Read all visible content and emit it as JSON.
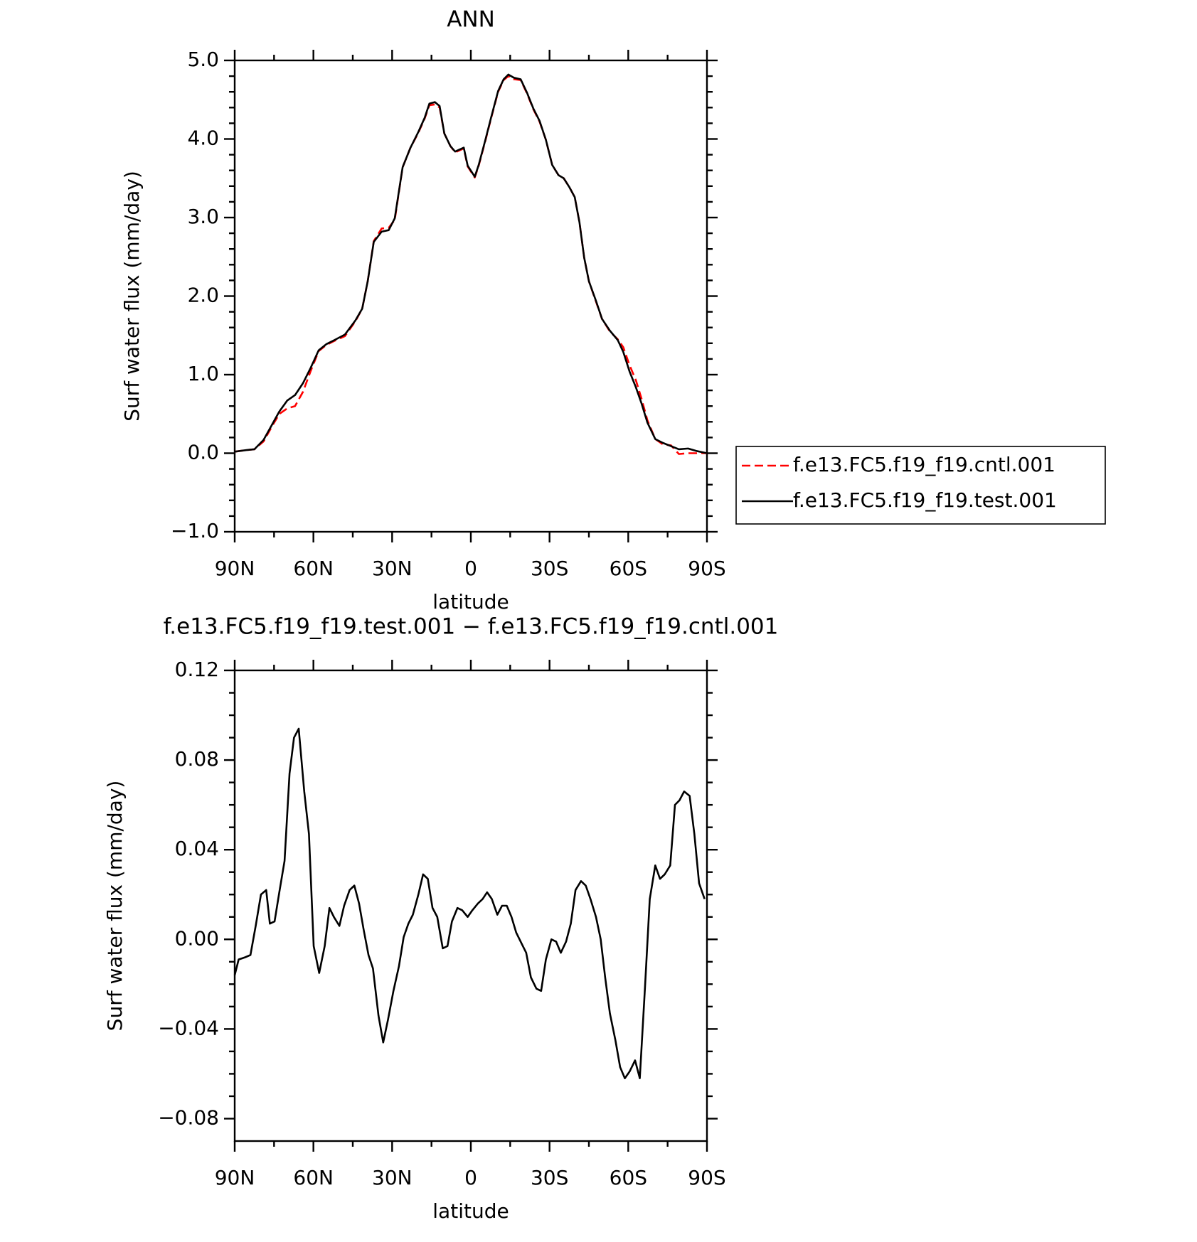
{
  "chart_data": [
    {
      "type": "line",
      "title": "ANN",
      "x_label": "latitude",
      "y_label": "Surf water flux (mm/day)",
      "xlim": [
        90,
        -90
      ],
      "xticks": [
        {
          "value": 90,
          "label": "90N"
        },
        {
          "value": 60,
          "label": "60N"
        },
        {
          "value": 30,
          "label": "30N"
        },
        0,
        {
          "value": -30,
          "label": "30S"
        },
        {
          "value": -60,
          "label": "60S"
        },
        {
          "value": -90,
          "label": "90S"
        }
      ],
      "ylim": [
        -1,
        5
      ],
      "yticks": [
        {
          "value": -1,
          "label": "−1.0"
        },
        {
          "value": 0,
          "label": "0.0"
        },
        {
          "value": 1,
          "label": "1.0"
        },
        {
          "value": 2,
          "label": "2.0"
        },
        {
          "value": 3,
          "label": "3.0"
        },
        {
          "value": 4,
          "label": "4.0"
        },
        {
          "value": 5,
          "label": "5.0"
        }
      ],
      "x": [
        90,
        85.5,
        82.5,
        79,
        76,
        73,
        70,
        67,
        64,
        61,
        58,
        55,
        52,
        48,
        44,
        41.4,
        39.3,
        37,
        34,
        31.3,
        29,
        26,
        23,
        20,
        17.6,
        15.8,
        13.7,
        11.9,
        10.1,
        7.8,
        6,
        2.7,
        1.2,
        -1.5,
        -3,
        -5.4,
        -7.7,
        -10.4,
        -12.5,
        -14.3,
        -16.4,
        -19,
        -21.4,
        -23.8,
        -26.2,
        -28.6,
        -31,
        -33.4,
        -35.4,
        -37.5,
        -39.6,
        -41.4,
        -43.2,
        -45,
        -47.7,
        -50,
        -53,
        -56,
        -58.1,
        -60.5,
        -62.9,
        -65,
        -67.3,
        -70.3,
        -73.3,
        -76.3,
        -79.3,
        -82.8,
        -85.8,
        -90
      ],
      "series": [
        {
          "name": "f.e13.FC5.f19_f19.cntl.001",
          "color": "#ff0000",
          "line_style": "dashed",
          "values": [
            0.02,
            0.04,
            0.05,
            0.15,
            0.33,
            0.5,
            0.57,
            0.6,
            0.78,
            1.05,
            1.3,
            1.38,
            1.43,
            1.49,
            1.68,
            1.84,
            2.19,
            2.7,
            2.86,
            2.87,
            2.97,
            3.64,
            3.89,
            4.08,
            4.26,
            4.43,
            4.44,
            4.4,
            4.07,
            3.91,
            3.83,
            3.88,
            3.65,
            3.51,
            3.66,
            3.96,
            4.26,
            4.6,
            4.75,
            4.8,
            4.76,
            4.75,
            4.58,
            4.38,
            4.22,
            3.99,
            3.67,
            3.54,
            3.5,
            3.39,
            3.26,
            2.94,
            2.49,
            2.19,
            1.93,
            1.71,
            1.55,
            1.45,
            1.35,
            1.12,
            0.93,
            0.7,
            0.42,
            0.18,
            0.11,
            0.1,
            -0.01,
            0.0,
            0.0,
            0.0
          ]
        },
        {
          "name": "f.e13.FC5.f19_f19.test.001",
          "color": "#000000",
          "line_style": "solid",
          "values": [
            0.02,
            0.04,
            0.05,
            0.17,
            0.35,
            0.53,
            0.67,
            0.74,
            0.89,
            1.09,
            1.31,
            1.39,
            1.44,
            1.51,
            1.69,
            1.84,
            2.19,
            2.69,
            2.82,
            2.84,
            2.99,
            3.64,
            3.89,
            4.09,
            4.27,
            4.45,
            4.47,
            4.42,
            4.07,
            3.91,
            3.84,
            3.89,
            3.66,
            3.52,
            3.67,
            3.97,
            4.27,
            4.61,
            4.76,
            4.82,
            4.78,
            4.76,
            4.59,
            4.39,
            4.23,
            3.99,
            3.67,
            3.54,
            3.5,
            3.39,
            3.26,
            2.94,
            2.49,
            2.19,
            1.94,
            1.71,
            1.56,
            1.44,
            1.29,
            1.04,
            0.84,
            0.64,
            0.39,
            0.18,
            0.13,
            0.09,
            0.05,
            0.06,
            0.03,
            0.0
          ]
        }
      ]
    },
    {
      "type": "line",
      "title": "f.e13.FC5.f19_f19.test.001 − f.e13.FC5.f19_f19.cntl.001",
      "x_label": "latitude",
      "y_label": "Surf water flux (mm/day)",
      "xlim": [
        90,
        -90
      ],
      "xticks": [
        {
          "value": 90,
          "label": "90N"
        },
        {
          "value": 60,
          "label": "60N"
        },
        {
          "value": 30,
          "label": "30N"
        },
        0,
        {
          "value": -30,
          "label": "30S"
        },
        {
          "value": -60,
          "label": "60S"
        },
        {
          "value": -90,
          "label": "90S"
        }
      ],
      "ylim": [
        -0.09,
        0.12
      ],
      "yticks": [
        {
          "value": -0.08,
          "label": "−0.08"
        },
        {
          "value": -0.04,
          "label": "−0.04"
        },
        {
          "value": 0,
          "label": "0.00"
        },
        {
          "value": 0.04,
          "label": "0.04"
        },
        {
          "value": 0.08,
          "label": "0.08"
        },
        {
          "value": 0.12,
          "label": "0.12"
        }
      ],
      "color": "#000000",
      "x": [
        90,
        88.5,
        86,
        84,
        82,
        80,
        78,
        76.6,
        74.8,
        73,
        71,
        69.1,
        67.4,
        65.6,
        63.5,
        61.7,
        59.9,
        57.8,
        55.7,
        53.9,
        52.2,
        50.1,
        48.3,
        46.2,
        44.4,
        42.6,
        40.8,
        39,
        37.3,
        35.2,
        33.4,
        31.6,
        29.5,
        27.4,
        25.6,
        23.8,
        22.1,
        20,
        18.2,
        16.4,
        14.6,
        12.8,
        10.7,
        8.9,
        7.2,
        5.1,
        3.3,
        1.2,
        -0.6,
        -2.7,
        -4.5,
        -6.2,
        -8,
        -10.1,
        -11.9,
        -13.7,
        -15.5,
        -17.3,
        -19.4,
        -21.1,
        -22.9,
        -25,
        -26.8,
        -28.6,
        -30.7,
        -32.5,
        -34.3,
        -36.3,
        -38.1,
        -39.9,
        -42,
        -43.8,
        -45.6,
        -47.7,
        -49.5,
        -51.2,
        -53,
        -55.1,
        -56.9,
        -58.7,
        -60.5,
        -62.6,
        -64.4,
        -66.4,
        -68.2,
        -70.3,
        -72.1,
        -73.9,
        -76,
        -77.8,
        -79.5,
        -81.3,
        -83.4,
        -85.2,
        -87,
        -89.1
      ],
      "values": [
        -0.016,
        -0.009,
        -0.008,
        -0.007,
        0.006,
        0.02,
        0.022,
        0.007,
        0.008,
        0.021,
        0.035,
        0.074,
        0.09,
        0.094,
        0.066,
        0.047,
        -0.003,
        -0.015,
        -0.003,
        0.014,
        0.01,
        0.006,
        0.015,
        0.022,
        0.024,
        0.016,
        0.004,
        -0.007,
        -0.013,
        -0.034,
        -0.046,
        -0.036,
        -0.023,
        -0.012,
        0.001,
        0.007,
        0.011,
        0.02,
        0.029,
        0.027,
        0.014,
        0.01,
        -0.004,
        -0.003,
        0.008,
        0.014,
        0.013,
        0.01,
        0.013,
        0.016,
        0.018,
        0.021,
        0.018,
        0.011,
        0.015,
        0.015,
        0.01,
        0.003,
        -0.002,
        -0.006,
        -0.017,
        -0.022,
        -0.023,
        -0.009,
        0,
        -0.001,
        -0.006,
        -0.001,
        0.007,
        0.022,
        0.026,
        0.024,
        0.018,
        0.01,
        0,
        -0.017,
        -0.033,
        -0.045,
        -0.057,
        -0.062,
        -0.059,
        -0.054,
        -0.062,
        -0.021,
        0.018,
        0.033,
        0.027,
        0.029,
        0.033,
        0.06,
        0.062,
        0.066,
        0.064,
        0.047,
        0.025,
        0.018
      ]
    }
  ]
}
